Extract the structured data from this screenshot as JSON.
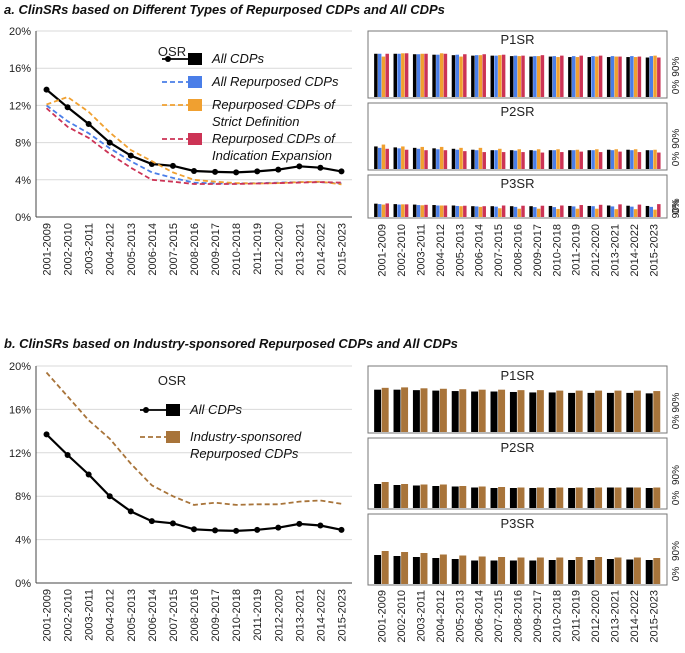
{
  "panel_a": {
    "title": "a. ClinSRs based on Different Types of Repurposed CDPs and All CDPs",
    "osr_label": "OSR",
    "legend": [
      {
        "lines": [
          "All CDPs"
        ]
      },
      {
        "lines": [
          "All Repurposed CDPs"
        ]
      },
      {
        "lines": [
          "Repurposed CDPs of",
          "Strict Definition"
        ]
      },
      {
        "lines": [
          "Repurposed CDPs of",
          "Indication Expansion"
        ]
      }
    ]
  },
  "panel_b": {
    "title": "b. ClinSRs based on Industry-sponsored Repurposed CDPs and All CDPs",
    "osr_label": "OSR",
    "legend": [
      {
        "lines": [
          "All CDPs"
        ]
      },
      {
        "lines": [
          "Industry-sponsored",
          "Repurposed CDPs"
        ]
      }
    ]
  },
  "colors": {
    "all": "#000000",
    "repurposed": "#4a7ee8",
    "strict": "#f0a030",
    "indication": "#cc3355",
    "industry": "#a8743a",
    "grid": "#d9d9d9",
    "axis": "#444444"
  },
  "chart_data": [
    {
      "id": "a-osr",
      "type": "line",
      "title": "OSR",
      "categories": [
        "2001-2009",
        "2002-2010",
        "2003-2011",
        "2004-2012",
        "2005-2013",
        "2006-2014",
        "2007-2015",
        "2008-2016",
        "2009-2017",
        "2010-2018",
        "2011-2019",
        "2012-2020",
        "2013-2021",
        "2014-2022",
        "2015-2023"
      ],
      "yticks": [
        "0%",
        "4%",
        "8%",
        "12%",
        "16%",
        "20%"
      ],
      "ylim": [
        0,
        20
      ],
      "grid": true,
      "series": [
        {
          "name": "All CDPs",
          "style": "solid-marker",
          "values": [
            13.7,
            11.8,
            10.0,
            8.0,
            6.6,
            5.7,
            5.5,
            4.95,
            4.85,
            4.8,
            4.9,
            5.1,
            5.45,
            5.3,
            4.9
          ]
        },
        {
          "name": "All Repurposed CDPs",
          "style": "dashed",
          "values": [
            12.0,
            10.3,
            9.0,
            7.4,
            6.0,
            4.8,
            4.2,
            3.7,
            3.6,
            3.6,
            3.65,
            3.7,
            3.75,
            3.75,
            3.6
          ]
        },
        {
          "name": "Repurposed CDPs of Strict Definition",
          "style": "dashed",
          "values": [
            12.1,
            12.9,
            11.3,
            9.1,
            7.2,
            6.0,
            4.8,
            4.0,
            3.8,
            3.65,
            3.6,
            3.65,
            3.75,
            3.8,
            3.5
          ]
        },
        {
          "name": "Repurposed CDPs of Indication Expansion",
          "style": "dashed",
          "values": [
            11.7,
            9.7,
            8.5,
            6.8,
            5.3,
            4.0,
            3.8,
            3.55,
            3.55,
            3.55,
            3.6,
            3.65,
            3.7,
            3.75,
            3.7
          ]
        }
      ]
    },
    {
      "id": "a-p1sr",
      "type": "bar",
      "title": "P1SR",
      "yticks": [
        "0%",
        "90%"
      ],
      "ylim": [
        0,
        100
      ],
      "values_by_series": [
        [
          92,
          92,
          91,
          90,
          89,
          88,
          88,
          87,
          86,
          86,
          85,
          85,
          85,
          85,
          84
        ],
        [
          92,
          92,
          91,
          90,
          90,
          89,
          88,
          88,
          87,
          87,
          87,
          87,
          87,
          87,
          87
        ],
        [
          86,
          93,
          92,
          93,
          86,
          89,
          89,
          87,
          87,
          85,
          85,
          86,
          86,
          85,
          88
        ],
        [
          92,
          93,
          92,
          92,
          91,
          91,
          90,
          88,
          89,
          88,
          88,
          88,
          86,
          86,
          84
        ]
      ]
    },
    {
      "id": "a-p2sr",
      "type": "bar",
      "title": "P2SR",
      "yticks": [
        "0%",
        "90%"
      ],
      "ylim": [
        0,
        100
      ],
      "values_by_series": [
        [
          48,
          46,
          45,
          44,
          43,
          41,
          40,
          40,
          40,
          40,
          40,
          40,
          41,
          41,
          40
        ],
        [
          45,
          44,
          43,
          42,
          41,
          40,
          40,
          39,
          39,
          40,
          40,
          40,
          40,
          40,
          40
        ],
        [
          52,
          48,
          47,
          47,
          45,
          45,
          43,
          42,
          42,
          42,
          41,
          42,
          42,
          42,
          41
        ],
        [
          43,
          41,
          40,
          40,
          38,
          36,
          36,
          36,
          35,
          36,
          37,
          36,
          37,
          36,
          35
        ]
      ]
    },
    {
      "id": "a-p3sr",
      "type": "bar",
      "title": "P3SR",
      "yticks": [
        "0%",
        "90%"
      ],
      "ylim": [
        0,
        100
      ],
      "values_by_series": [
        [
          58,
          56,
          54,
          52,
          50,
          47,
          47,
          47,
          47,
          48,
          48,
          48,
          50,
          49,
          48
        ],
        [
          56,
          54,
          52,
          50,
          48,
          46,
          45,
          44,
          43,
          43,
          46,
          47,
          46,
          45,
          44
        ],
        [
          54,
          55,
          51,
          50,
          47,
          44,
          38,
          36,
          36,
          35,
          36,
          36,
          34,
          34,
          32
        ],
        [
          59,
          55,
          53,
          50,
          49,
          47,
          50,
          49,
          49,
          50,
          52,
          53,
          55,
          54,
          56
        ]
      ]
    },
    {
      "id": "b-osr",
      "type": "line",
      "title": "OSR",
      "categories": [
        "2001-2009",
        "2002-2010",
        "2003-2011",
        "2004-2012",
        "2005-2013",
        "2006-2014",
        "2007-2015",
        "2008-2016",
        "2009-2017",
        "2010-2018",
        "2011-2019",
        "2012-2020",
        "2013-2021",
        "2014-2022",
        "2015-2023"
      ],
      "yticks": [
        "0%",
        "4%",
        "8%",
        "12%",
        "16%",
        "20%"
      ],
      "ylim": [
        0,
        20
      ],
      "grid": true,
      "series": [
        {
          "name": "All CDPs",
          "style": "solid-marker",
          "values": [
            13.7,
            11.8,
            10.0,
            8.0,
            6.6,
            5.7,
            5.5,
            4.95,
            4.85,
            4.8,
            4.9,
            5.1,
            5.45,
            5.3,
            4.9
          ]
        },
        {
          "name": "Industry-sponsored Repurposed CDPs",
          "style": "dashed",
          "values": [
            19.4,
            17.2,
            15.0,
            13.3,
            11.0,
            9.0,
            8.0,
            7.2,
            7.4,
            7.2,
            7.25,
            7.25,
            7.5,
            7.6,
            7.3
          ]
        }
      ]
    },
    {
      "id": "b-p1sr",
      "type": "bar",
      "title": "P1SR",
      "yticks": [
        "0%",
        "90%"
      ],
      "ylim": [
        0,
        100
      ],
      "values_by_series": [
        [
          92,
          92,
          91,
          90,
          89,
          88,
          88,
          87,
          86,
          86,
          85,
          85,
          85,
          85,
          84
        ],
        [
          96,
          97,
          95,
          94,
          93,
          92,
          92,
          91,
          91,
          90,
          90,
          90,
          90,
          90,
          89
        ]
      ]
    },
    {
      "id": "b-p2sr",
      "type": "bar",
      "title": "P2SR",
      "yticks": [
        "0%",
        "90%"
      ],
      "ylim": [
        0,
        100
      ],
      "values_by_series": [
        [
          48,
          46,
          45,
          44,
          43,
          41,
          40,
          40,
          40,
          40,
          40,
          40,
          41,
          41,
          40
        ],
        [
          52,
          48,
          47,
          47,
          44,
          43,
          42,
          41,
          41,
          41,
          41,
          41,
          41,
          41,
          41
        ]
      ]
    },
    {
      "id": "b-p3sr",
      "type": "bar",
      "title": "P3SR",
      "yticks": [
        "0%",
        "90%"
      ],
      "ylim": [
        0,
        100
      ],
      "values_by_series": [
        [
          58,
          56,
          54,
          52,
          50,
          47,
          47,
          47,
          47,
          48,
          48,
          48,
          50,
          49,
          48
        ],
        [
          66,
          64,
          62,
          59,
          57,
          55,
          54,
          53,
          53,
          53,
          54,
          54,
          53,
          53,
          52
        ]
      ]
    }
  ]
}
